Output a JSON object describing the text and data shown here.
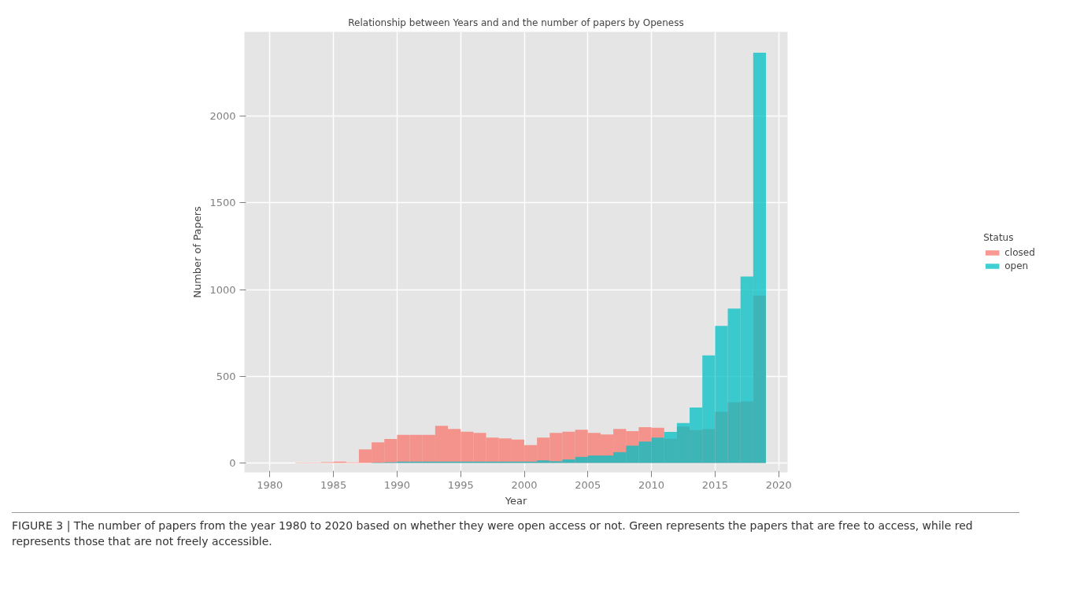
{
  "chart_data": {
    "type": "histogram",
    "title": "Relationship between Years and and the number of papers by Openess",
    "xlabel": "Year",
    "ylabel": "Number of Papers",
    "legend_title": "Status",
    "legend": "right",
    "bins": [
      1982,
      1983,
      1984,
      1985,
      1986,
      1987,
      1988,
      1989,
      1990,
      1991,
      1992,
      1993,
      1994,
      1995,
      1996,
      1997,
      1998,
      1999,
      2000,
      2001,
      2002,
      2003,
      2004,
      2005,
      2006,
      2007,
      2008,
      2009,
      2010,
      2011,
      2012,
      2013,
      2014,
      2015,
      2016,
      2017,
      2018,
      2019
    ],
    "series": [
      {
        "name": "closed",
        "color": "#f8766d",
        "values": [
          3,
          3,
          5,
          8,
          4,
          79,
          119,
          139,
          162,
          162,
          162,
          215,
          197,
          181,
          174,
          147,
          142,
          135,
          104,
          147,
          174,
          181,
          192,
          174,
          165,
          196,
          184,
          207,
          203,
          140,
          210,
          190,
          195,
          295,
          350,
          355,
          965
        ]
      },
      {
        "name": "open",
        "color": "#00bfc4",
        "values": [
          0,
          0,
          0,
          0,
          0,
          0,
          3,
          5,
          8,
          8,
          8,
          8,
          8,
          8,
          8,
          8,
          8,
          8,
          8,
          15,
          11,
          21,
          36,
          44,
          44,
          63,
          100,
          124,
          147,
          180,
          230,
          320,
          620,
          790,
          890,
          1075,
          2365
        ]
      }
    ],
    "xlim": [
      1978,
      2020.7
    ],
    "ylim": [
      -54,
      2485
    ],
    "xticks": [
      1980,
      1985,
      1990,
      1995,
      2000,
      2005,
      2010,
      2015,
      2020
    ],
    "yticks": [
      0,
      500,
      1000,
      1500,
      2000
    ],
    "grid": true,
    "annotations": [
      "FIGURE 3 | The number of papers from the year 1980 to 2020 based on whether they were open access or not. Green represents the papers that are free to access, while red represents those that are not freely accessible."
    ]
  }
}
